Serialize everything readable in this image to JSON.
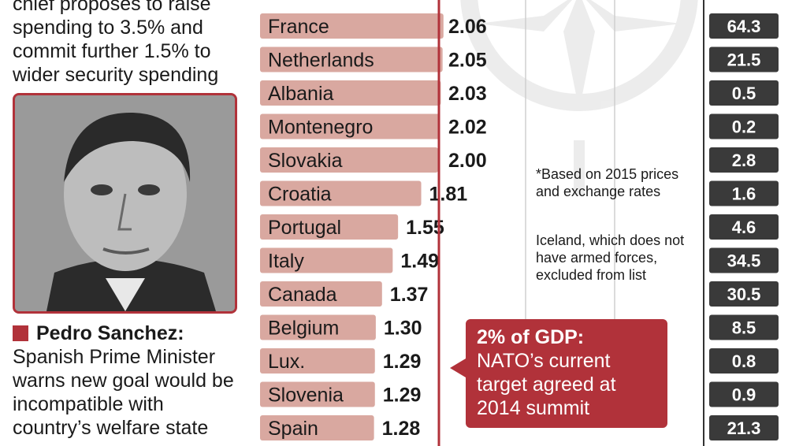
{
  "intro_text": "chief proposes to raise spending to 3.5% and commit further 1.5% to wider security spending",
  "caption": {
    "name": "Pedro Sanchez:",
    "text": "Spanish Prime Minister warns new goal would be incompatible with country’s welfare state"
  },
  "notes": [
    "*Based on 2015 prices and exchange rates",
    "Iceland, which does not have armed forces, excluded from list"
  ],
  "callout": {
    "head": "2% of GDP:",
    "body": "NATO’s current target agreed at 2014 summit"
  },
  "colors": {
    "bar": "#d9a8a0",
    "accent": "#b1323a",
    "right_box": "#3a3a3a"
  },
  "chart_data": {
    "type": "bar",
    "orientation": "horizontal",
    "categories": [
      "France",
      "Netherlands",
      "Albania",
      "Montenegro",
      "Slovakia",
      "Croatia",
      "Portugal",
      "Italy",
      "Canada",
      "Belgium",
      "Lux.",
      "Slovenia",
      "Spain"
    ],
    "series": [
      {
        "values": [
          2.06,
          2.05,
          2.03,
          2.02,
          2.0,
          1.81,
          1.55,
          1.49,
          1.37,
          1.3,
          1.29,
          1.29,
          1.28
        ]
      },
      {
        "values": [
          64.3,
          21.5,
          0.5,
          0.2,
          2.8,
          1.6,
          4.6,
          34.5,
          30.5,
          8.5,
          0.8,
          0.9,
          21.3
        ]
      }
    ],
    "value_labels": [
      "2.06",
      "2.05",
      "2.03",
      "2.02",
      "2.00",
      "1.81",
      "1.55",
      "1.49",
      "1.37",
      "1.30",
      "1.29",
      "1.29",
      "1.28"
    ],
    "right_labels": [
      "64.3",
      "21.5",
      "0.5",
      "0.2",
      "2.8",
      "1.6",
      "4.6",
      "34.5",
      "30.5",
      "8.5",
      "0.8",
      "0.9",
      "21.3"
    ],
    "reference_line": 2.0,
    "title": "",
    "xlabel": "",
    "ylabel": ""
  }
}
